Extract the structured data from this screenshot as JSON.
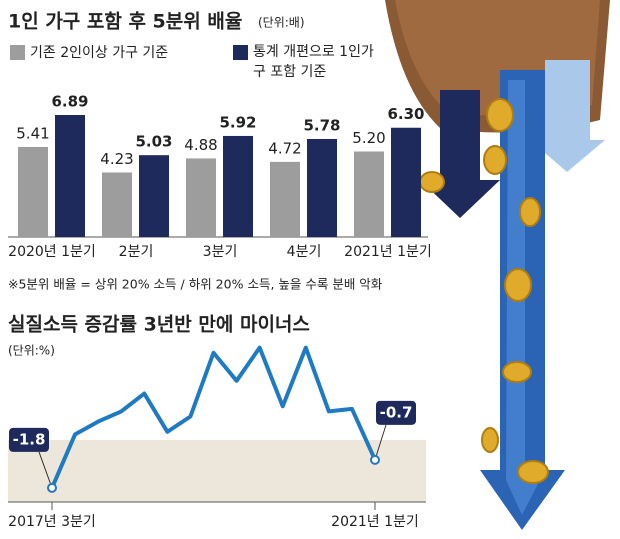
{
  "chart_data": [
    {
      "type": "bar",
      "title": "1인 가구 포함 후 5분위 배율",
      "unit": "(단위:배)",
      "categories": [
        "2020년 1분기",
        "2분기",
        "3분기",
        "4분기",
        "2021년 1분기"
      ],
      "series": [
        {
          "name": "기존 2인이상 가구 기준",
          "color": "#9d9d9d",
          "values": [
            5.41,
            4.23,
            4.88,
            4.72,
            5.2
          ],
          "value_labels": [
            "5.41",
            "4.23",
            "4.88",
            "4.72",
            "5.20"
          ]
        },
        {
          "name": "통계 개편으로 1인가구 포함 기준",
          "color": "#1f2a5c",
          "values": [
            6.89,
            5.03,
            5.92,
            5.78,
            6.3
          ],
          "value_labels": [
            "6.89",
            "5.03",
            "5.92",
            "5.78",
            "6.30"
          ]
        }
      ],
      "note": "※5분위 배율 = 상위 20% 소득 / 하위 20% 소득, 높을 수록 분배 악화"
    },
    {
      "type": "line",
      "title": "실질소득 증감률 3년반 만에 마이너스",
      "unit": "(단위:%)",
      "categories": [
        "2017년 3분기",
        null,
        null,
        null,
        null,
        null,
        null,
        null,
        null,
        null,
        null,
        null,
        null,
        null,
        "2021년 1분기"
      ],
      "series": [
        {
          "color": "#1f7ac4",
          "values": [
            -1.8,
            0.3,
            0.8,
            1.2,
            1.9,
            0.4,
            1.0,
            3.5,
            2.4,
            3.7,
            1.4,
            3.7,
            1.2,
            1.3,
            -0.7
          ]
        }
      ]
    }
  ]
}
